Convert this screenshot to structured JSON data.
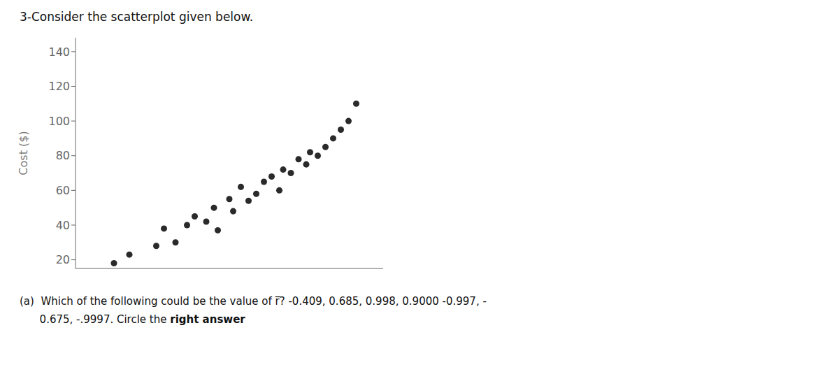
{
  "chart_data": {
    "type": "scatter",
    "title": "3-Consider the scatterplot given below.",
    "y_label": "Cost ($)",
    "x": [
      1.0,
      1.4,
      2.1,
      2.3,
      2.6,
      2.9,
      3.1,
      3.4,
      3.6,
      3.7,
      4.0,
      4.1,
      4.3,
      4.5,
      4.7,
      4.9,
      5.1,
      5.3,
      5.4,
      5.6,
      5.8,
      6.0,
      6.1,
      6.3,
      6.5,
      6.7,
      6.9,
      7.1,
      7.3
    ],
    "values": [
      18,
      23,
      28,
      38,
      30,
      40,
      45,
      42,
      50,
      37,
      55,
      48,
      62,
      54,
      58,
      65,
      68,
      60,
      72,
      70,
      78,
      75,
      82,
      80,
      85,
      90,
      95,
      100,
      110
    ],
    "color": "#2a2a2a",
    "xlim": [
      0,
      8
    ],
    "ylim": [
      15,
      148
    ],
    "yticks": [
      20,
      40,
      60,
      80,
      100,
      120,
      140
    ],
    "grid": false,
    "tick_labels": "y",
    "annotations": [
      "(a)  Which of the following could be the value of r̅? -0.409, 0.685, 0.998, 0.9000 -0.997, -",
      "      0.675, -.9997. Circle the ",
      "right answer"
    ]
  }
}
